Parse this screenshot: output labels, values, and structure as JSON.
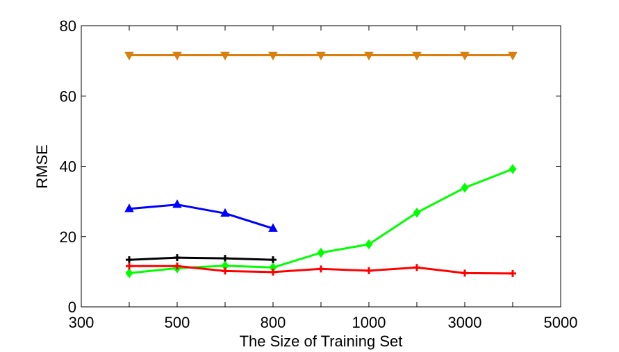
{
  "chart_data": {
    "type": "line",
    "title": "",
    "xlabel": "The Size of Training Set",
    "ylabel": "RMSE",
    "ylim": [
      0,
      80
    ],
    "categories": [
      "300",
      "",
      "500",
      "",
      "800",
      "",
      "1000",
      "",
      "3000",
      "",
      "5000"
    ],
    "x_tick_labels": [
      "300",
      "500",
      "800",
      "1000",
      "3000",
      "5000"
    ],
    "y_tick_labels": [
      "0",
      "20",
      "40",
      "60",
      "80"
    ],
    "grid": false,
    "legend": "none",
    "series": [
      {
        "color": "#d97f0f",
        "marker": "triangle-down",
        "values": [
          null,
          71.6,
          71.6,
          71.6,
          71.6,
          71.6,
          71.6,
          71.6,
          71.6,
          71.6,
          null
        ]
      },
      {
        "color": "#0000ff",
        "marker": "triangle-up",
        "values": [
          null,
          27.9,
          29.1,
          26.6,
          22.3,
          null,
          null,
          null,
          null,
          null,
          null
        ]
      },
      {
        "color": "#000000",
        "marker": "plus",
        "values": [
          null,
          13.4,
          14.0,
          13.8,
          13.4,
          null,
          null,
          null,
          null,
          null,
          null
        ]
      },
      {
        "color": "#00ff00",
        "marker": "diamond",
        "values": [
          null,
          9.6,
          11.0,
          11.7,
          11.2,
          15.4,
          17.8,
          26.8,
          33.9,
          39.2,
          null
        ]
      },
      {
        "color": "#ff0000",
        "marker": "plus",
        "values": [
          null,
          11.6,
          11.6,
          10.2,
          9.9,
          10.8,
          10.3,
          11.2,
          9.6,
          9.5,
          null
        ]
      }
    ]
  }
}
